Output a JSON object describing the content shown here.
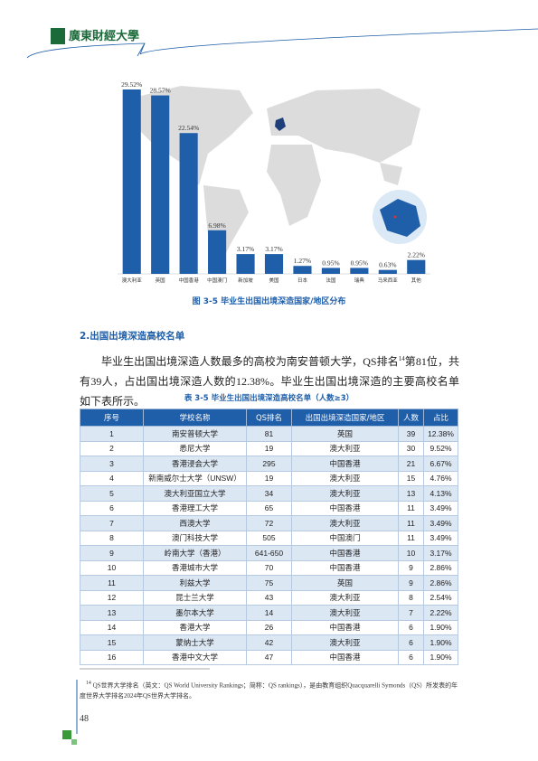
{
  "header": {
    "logo_text": "廣東財經大學"
  },
  "chart_data": {
    "type": "bar",
    "categories": [
      "澳大利亚",
      "英国",
      "中国香港",
      "中国澳门",
      "新加坡",
      "美国",
      "日本",
      "法国",
      "瑞典",
      "马来西亚",
      "其他"
    ],
    "values": [
      29.52,
      28.57,
      22.54,
      6.98,
      3.17,
      3.17,
      1.27,
      0.95,
      0.95,
      0.63,
      2.22
    ],
    "value_labels": [
      "29.52%",
      "28.57%",
      "22.54%",
      "6.98%",
      "3.17%",
      "3.17%",
      "1.27%",
      "0.95%",
      "0.95%",
      "0.63%",
      "2.22%"
    ],
    "color": "#1f5ea8"
  },
  "figure_caption": "图 3-5  毕业生出国出境深造国家/地区分布",
  "section_heading": "2.出国出境深造高校名单",
  "paragraph": {
    "before": "毕业生出国出境深造人数最多的高校为南安普顿大学，QS排名",
    "footnote_ref": "14",
    "after": "第81位，共有39人，占出国出境深造人数的12.38%。毕业生出国出境深造的主要高校名单如下表所示。"
  },
  "table_caption": "表 3-5  毕业生出国出境深造高校名单（人数≥3）",
  "table": {
    "columns": [
      "序号",
      "学校名称",
      "QS排名",
      "出国出境深造国家/地区",
      "人数",
      "占比"
    ],
    "rows": [
      [
        "1",
        "南安普顿大学",
        "81",
        "英国",
        "39",
        "12.38%"
      ],
      [
        "2",
        "悉尼大学",
        "19",
        "澳大利亚",
        "30",
        "9.52%"
      ],
      [
        "3",
        "香港浸会大学",
        "295",
        "中国香港",
        "21",
        "6.67%"
      ],
      [
        "4",
        "新南威尔士大学（UNSW）",
        "19",
        "澳大利亚",
        "15",
        "4.76%"
      ],
      [
        "5",
        "澳大利亚国立大学",
        "34",
        "澳大利亚",
        "13",
        "4.13%"
      ],
      [
        "6",
        "香港理工大学",
        "65",
        "中国香港",
        "11",
        "3.49%"
      ],
      [
        "7",
        "西澳大学",
        "72",
        "澳大利亚",
        "11",
        "3.49%"
      ],
      [
        "8",
        "澳门科技大学",
        "505",
        "中国澳门",
        "11",
        "3.49%"
      ],
      [
        "9",
        "岭南大学（香港）",
        "641-650",
        "中国香港",
        "10",
        "3.17%"
      ],
      [
        "10",
        "香港城市大学",
        "70",
        "中国香港",
        "9",
        "2.86%"
      ],
      [
        "11",
        "利兹大学",
        "75",
        "英国",
        "9",
        "2.86%"
      ],
      [
        "12",
        "昆士兰大学",
        "43",
        "澳大利亚",
        "8",
        "2.54%"
      ],
      [
        "13",
        "墨尔本大学",
        "14",
        "澳大利亚",
        "7",
        "2.22%"
      ],
      [
        "14",
        "香港大学",
        "26",
        "中国香港",
        "6",
        "1.90%"
      ],
      [
        "15",
        "蒙纳士大学",
        "42",
        "澳大利亚",
        "6",
        "1.90%"
      ],
      [
        "16",
        "香港中文大学",
        "47",
        "中国香港",
        "6",
        "1.90%"
      ]
    ]
  },
  "footnote": {
    "marker": "14",
    "text": "QS世界大学排名（英文：QS World University Rankings；简称：QS rankings），是由教育组织Quacquarelli Symonds（QS）所发表的年度世界大学排名2024年QS世界大学排名。"
  },
  "page_number": "48"
}
